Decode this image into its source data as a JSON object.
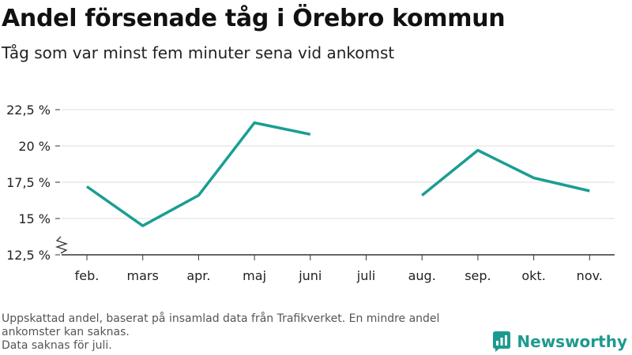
{
  "title": "Andel försenade tåg i Örebro kommun",
  "subtitle": "Tåg som var minst fem minuter sena vid ankomst",
  "footnote": [
    "Uppskattad andel, baserat på insamlad data från Trafikverket. En mindre andel ankomster kan saknas.",
    "Data saknas för juli."
  ],
  "brand": {
    "name": "Newsworthy",
    "logo_icon": "newsworthy-logo-icon"
  },
  "colors": {
    "line": "#1a9e92",
    "grid": "#dddddd",
    "axis": "#333333",
    "brand": "#1d9a8f"
  },
  "chart_data": {
    "type": "line",
    "title": "Andel försenade tåg i Örebro kommun",
    "subtitle": "Tåg som var minst fem minuter sena vid ankomst",
    "categories": [
      "feb.",
      "mars",
      "apr.",
      "maj",
      "juni",
      "juli",
      "aug.",
      "sep.",
      "okt.",
      "nov."
    ],
    "series": [
      {
        "values": [
          17.2,
          14.5,
          16.6,
          21.6,
          20.8,
          null,
          16.6,
          19.7,
          17.8,
          16.9
        ]
      }
    ],
    "ylim": [
      12.5,
      22.5
    ],
    "yticks": [
      12.5,
      15,
      17.5,
      20,
      22.5
    ],
    "ytick_labels": [
      "12,5 %",
      "15 %",
      "17,5 %",
      "20 %",
      "22,5 %"
    ],
    "grid": true,
    "axis_break": true,
    "xlabel": "",
    "ylabel": ""
  }
}
